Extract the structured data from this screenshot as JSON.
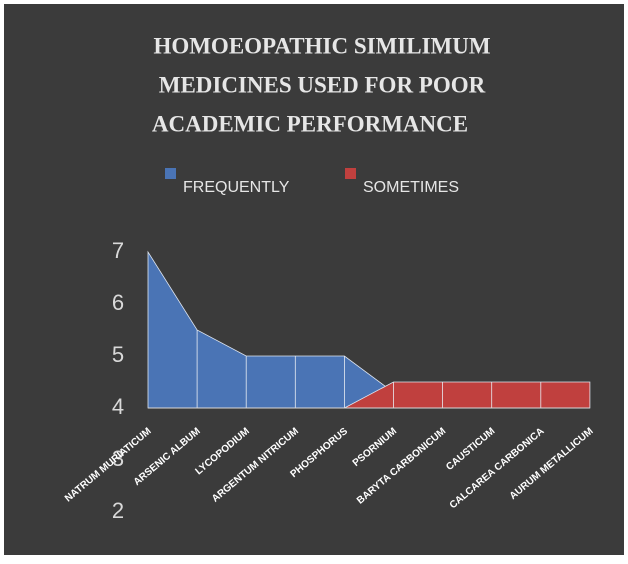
{
  "chart_data": {
    "type": "area",
    "title": [
      "HOMOEOPATHIC SIMILIMUM",
      "MEDICINES USED FOR POOR",
      "ACADEMIC PERFORMANCE"
    ],
    "categories": [
      "NATRUM MURIATICUM",
      "ARSENIC ALBUM",
      "LYCOPODIUM",
      "ARGENTUM NITRICUM",
      "PHOSPHORUS",
      "PSORNIUM",
      "BARYTA CARBONICUM",
      "CAUSTICUM",
      "CALCAREA CARBONICA",
      "AURUM METALLICUM"
    ],
    "series": [
      {
        "name": "FREQUENTLY",
        "color": "#4a74b5",
        "values": [
          7,
          5.5,
          5,
          5,
          5,
          4.3,
          null,
          null,
          null,
          null
        ]
      },
      {
        "name": "SOMETIMES",
        "color": "#c0403e",
        "values": [
          null,
          null,
          null,
          null,
          4,
          4.5,
          4.5,
          4.5,
          4.5,
          4.5
        ]
      }
    ],
    "ylim": [
      2,
      7
    ],
    "yticks": [
      2,
      3,
      4,
      5,
      6,
      7
    ]
  }
}
